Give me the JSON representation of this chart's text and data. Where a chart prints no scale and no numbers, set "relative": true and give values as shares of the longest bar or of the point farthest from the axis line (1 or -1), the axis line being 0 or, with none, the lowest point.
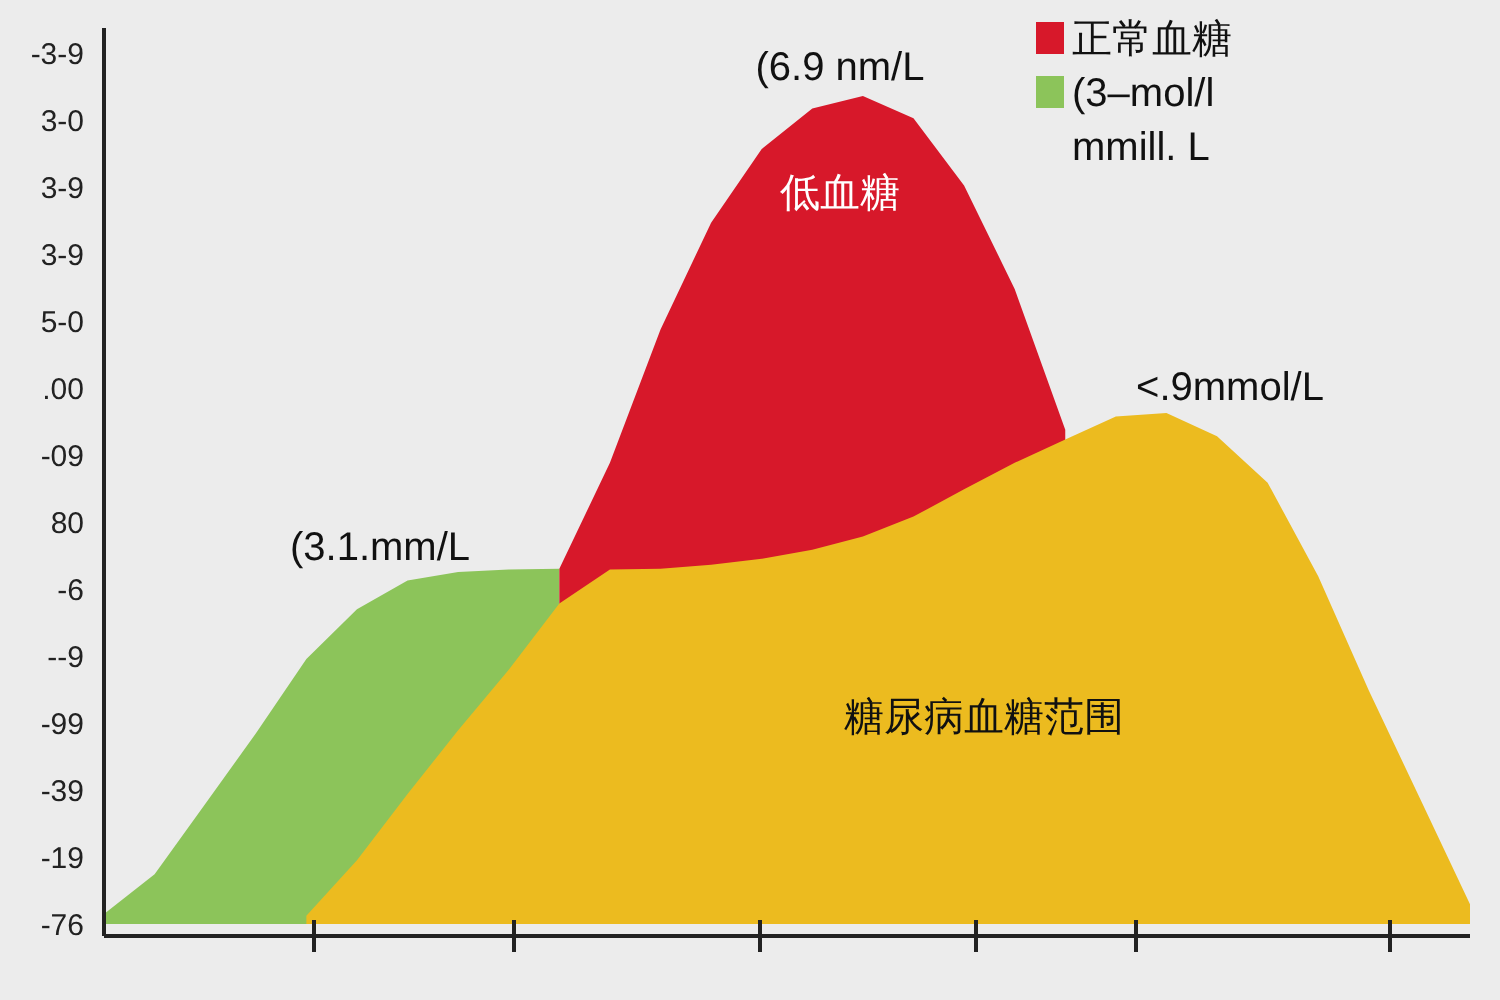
{
  "chart_data": {
    "type": "area",
    "relative": true,
    "categories": [
      null,
      null,
      null,
      null,
      null,
      null,
      null,
      null,
      null,
      null,
      null,
      null,
      null,
      null,
      null,
      null,
      null,
      null,
      null,
      null,
      null,
      null,
      null,
      null,
      null,
      null,
      null,
      null
    ],
    "series": [
      {
        "name": "(3–mol/l",
        "color": "#8cc45a",
        "values": [
          0.012,
          0.06,
          0.145,
          0.23,
          0.32,
          0.38,
          0.415,
          0.425,
          0.428,
          0.429,
          null,
          null,
          null,
          null,
          null,
          null,
          null,
          null,
          null,
          null,
          null,
          null,
          null,
          null,
          null,
          null,
          null,
          null
        ]
      },
      {
        "name": "正常血糖",
        "color": "#d7182a",
        "values": [
          null,
          null,
          null,
          null,
          null,
          null,
          null,
          null,
          null,
          0.429,
          0.557,
          0.718,
          0.847,
          0.936,
          0.985,
          1,
          0.973,
          0.892,
          0.767,
          0.597,
          null,
          null,
          null,
          null,
          null,
          null,
          null,
          null
        ]
      },
      {
        "color": "#ecbb1f",
        "values": [
          null,
          null,
          null,
          null,
          0.01,
          0.077,
          0.157,
          0.234,
          0.307,
          0.387,
          0.428,
          0.429,
          0.434,
          0.441,
          0.452,
          0.468,
          0.492,
          0.525,
          0.557,
          0.585,
          0.613,
          0.617,
          0.589,
          0.533,
          0.42,
          0.282,
          0.153,
          0.024
        ]
      }
    ],
    "annotations": [
      "(6.9 nm/L",
      "低血糖",
      "<.9mmol/L",
      "(3.1.mm/L",
      "糖尿病血糖范围",
      "mmill. L",
      "-3-9",
      "3-0",
      "3-9",
      "3-9",
      "5-0",
      ".00",
      "-09",
      "80",
      "-6",
      "--9",
      "-99",
      "-39",
      "-19",
      "-76"
    ],
    "grid": false,
    "legend": "top right",
    "marker": "none"
  }
}
